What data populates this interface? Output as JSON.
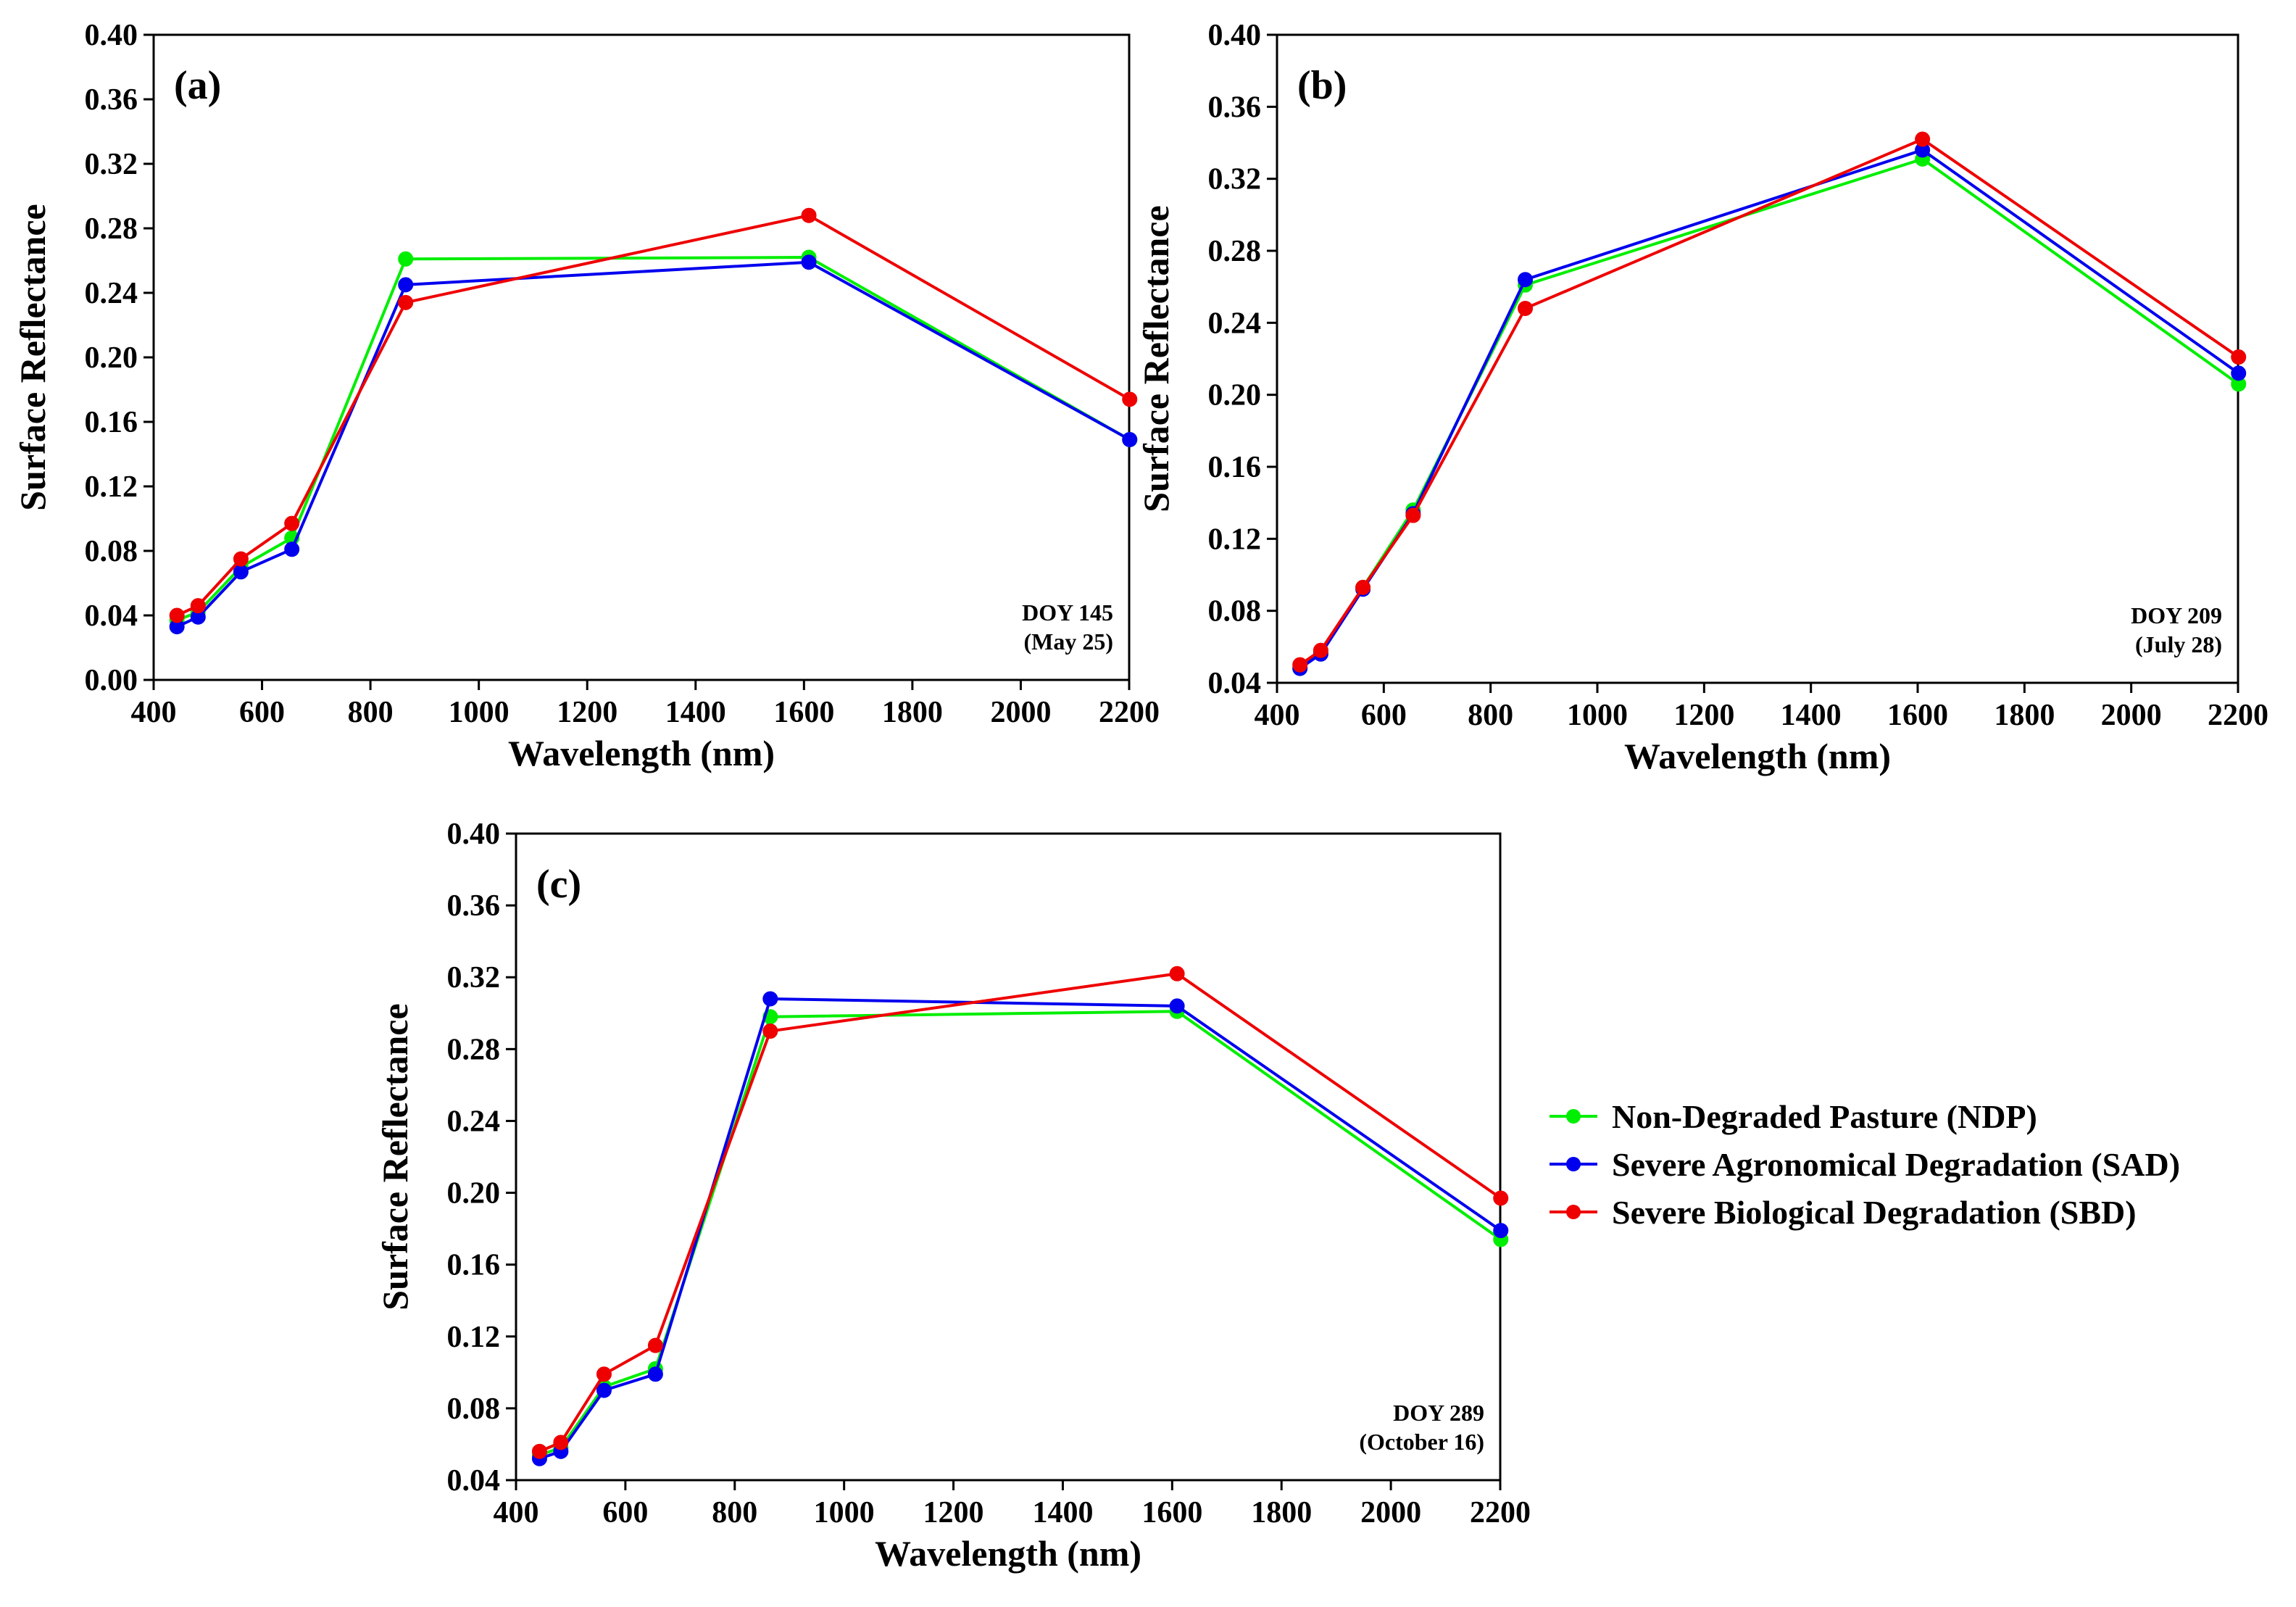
{
  "series_styles": [
    {
      "key": "NDP",
      "name": "Non-Degraded Pasture (NDP)",
      "color": "#00ee00"
    },
    {
      "key": "SAD",
      "name": "Severe Agronomical Degradation (SAD)",
      "color": "#0000ee"
    },
    {
      "key": "SBD",
      "name": "Severe Biological Degradation (SBD)",
      "color": "#ee0000"
    }
  ],
  "chart_data": [
    {
      "type": "line",
      "panel_label": "(a)",
      "annotation": [
        "DOY 145",
        "(May 25)"
      ],
      "xlabel": "Wavelength (nm)",
      "ylabel": "Surface Reflectance",
      "xlim": [
        400,
        2200
      ],
      "ylim": [
        0.0,
        0.4
      ],
      "xticks": [
        "400",
        "600",
        "800",
        "1000",
        "1200",
        "1400",
        "1600",
        "1800",
        "2000",
        "2200"
      ],
      "yticks": [
        "0.00",
        "0.04",
        "0.08",
        "0.12",
        "0.16",
        "0.20",
        "0.24",
        "0.28",
        "0.32",
        "0.36",
        "0.40"
      ],
      "x": [
        443,
        482,
        561,
        655,
        865,
        1609,
        2201
      ],
      "series": [
        {
          "key": "NDP",
          "values": [
            0.037,
            0.042,
            0.07,
            0.088,
            0.261,
            0.262,
            0.149
          ]
        },
        {
          "key": "SAD",
          "values": [
            0.033,
            0.039,
            0.067,
            0.081,
            0.245,
            0.259,
            0.149
          ]
        },
        {
          "key": "SBD",
          "values": [
            0.04,
            0.046,
            0.075,
            0.097,
            0.234,
            0.288,
            0.174
          ]
        }
      ]
    },
    {
      "type": "line",
      "panel_label": "(b)",
      "annotation": [
        "DOY 209",
        "(July 28)"
      ],
      "xlabel": "Wavelength (nm)",
      "ylabel": "Surface Reflectance",
      "xlim": [
        400,
        2200
      ],
      "ylim": [
        0.04,
        0.4
      ],
      "xticks": [
        "400",
        "600",
        "800",
        "1000",
        "1200",
        "1400",
        "1600",
        "1800",
        "2000",
        "2200"
      ],
      "yticks": [
        "0.04",
        "0.08",
        "0.12",
        "0.16",
        "0.20",
        "0.24",
        "0.28",
        "0.32",
        "0.36",
        "0.40"
      ],
      "x": [
        443,
        482,
        561,
        655,
        865,
        1609,
        2201
      ],
      "series": [
        {
          "key": "NDP",
          "values": [
            0.048,
            0.057,
            0.093,
            0.136,
            0.261,
            0.331,
            0.206
          ]
        },
        {
          "key": "SAD",
          "values": [
            0.048,
            0.056,
            0.092,
            0.134,
            0.264,
            0.336,
            0.212
          ]
        },
        {
          "key": "SBD",
          "values": [
            0.05,
            0.058,
            0.093,
            0.133,
            0.248,
            0.342,
            0.221
          ]
        }
      ]
    },
    {
      "type": "line",
      "panel_label": "(c)",
      "annotation": [
        "DOY 289",
        "(October 16)"
      ],
      "xlabel": "Wavelength (nm)",
      "ylabel": "Surface Reflectance",
      "xlim": [
        400,
        2200
      ],
      "ylim": [
        0.04,
        0.4
      ],
      "xticks": [
        "400",
        "600",
        "800",
        "1000",
        "1200",
        "1400",
        "1600",
        "1800",
        "2000",
        "2200"
      ],
      "yticks": [
        "0.04",
        "0.08",
        "0.12",
        "0.16",
        "0.20",
        "0.24",
        "0.28",
        "0.32",
        "0.36",
        "0.40"
      ],
      "x": [
        443,
        482,
        561,
        655,
        865,
        1609,
        2201
      ],
      "series": [
        {
          "key": "NDP",
          "values": [
            0.054,
            0.058,
            0.092,
            0.102,
            0.298,
            0.301,
            0.174
          ]
        },
        {
          "key": "SAD",
          "values": [
            0.052,
            0.056,
            0.09,
            0.099,
            0.308,
            0.304,
            0.179
          ]
        },
        {
          "key": "SBD",
          "values": [
            0.056,
            0.061,
            0.099,
            0.115,
            0.29,
            0.322,
            0.197
          ]
        }
      ]
    }
  ]
}
